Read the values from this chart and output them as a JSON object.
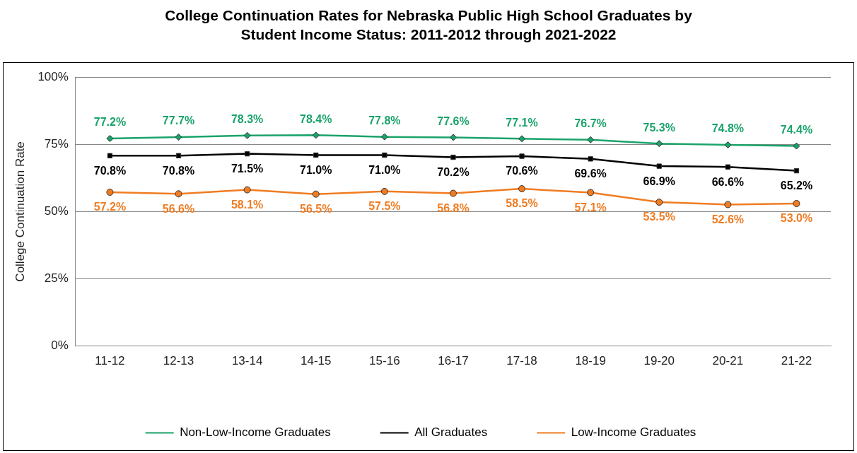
{
  "chart_data": {
    "type": "line",
    "title": "College Continuation Rates for Nebraska Public High School Graduates by Student Income Status:  2011-2012 through 2021-2022",
    "ylabel": "College Continuation Rate",
    "categories": [
      "11-12",
      "12-13",
      "13-14",
      "14-15",
      "15-16",
      "16-17",
      "17-18",
      "18-19",
      "19-20",
      "20-21",
      "21-22"
    ],
    "ylim": [
      0,
      100
    ],
    "yticks": [
      {
        "value": 0,
        "label": "0%"
      },
      {
        "value": 25,
        "label": "25%"
      },
      {
        "value": 50,
        "label": "50%"
      },
      {
        "value": 75,
        "label": "75%"
      },
      {
        "value": 100,
        "label": "100%"
      }
    ],
    "grid": "y",
    "legend": "bottom",
    "series": [
      {
        "name": "Non-Low-Income Graduates",
        "color": "#1aa36a",
        "marker": "diamond",
        "values": [
          77.2,
          77.7,
          78.3,
          78.4,
          77.8,
          77.6,
          77.1,
          76.7,
          75.3,
          74.8,
          74.4
        ],
        "value_labels": [
          "77.2%",
          "77.7%",
          "78.3%",
          "78.4%",
          "77.8%",
          "77.6%",
          "77.1%",
          "76.7%",
          "75.3%",
          "74.8%",
          "74.4%"
        ]
      },
      {
        "name": "All Graduates",
        "color": "#000000",
        "marker": "square",
        "values": [
          70.8,
          70.8,
          71.5,
          71.0,
          71.0,
          70.2,
          70.6,
          69.6,
          66.9,
          66.6,
          65.2
        ],
        "value_labels": [
          "70.8%",
          "70.8%",
          "71.5%",
          "71.0%",
          "71.0%",
          "70.2%",
          "70.6%",
          "69.6%",
          "66.9%",
          "66.6%",
          "65.2%"
        ]
      },
      {
        "name": "Low-Income Graduates",
        "color": "#f07c22",
        "marker": "circle",
        "values": [
          57.2,
          56.6,
          58.1,
          56.5,
          57.5,
          56.8,
          58.5,
          57.1,
          53.5,
          52.6,
          53.0
        ],
        "value_labels": [
          "57.2%",
          "56.6%",
          "58.1%",
          "56.5%",
          "57.5%",
          "56.8%",
          "58.5%",
          "57.1%",
          "53.5%",
          "52.6%",
          "53.0%"
        ]
      }
    ]
  }
}
